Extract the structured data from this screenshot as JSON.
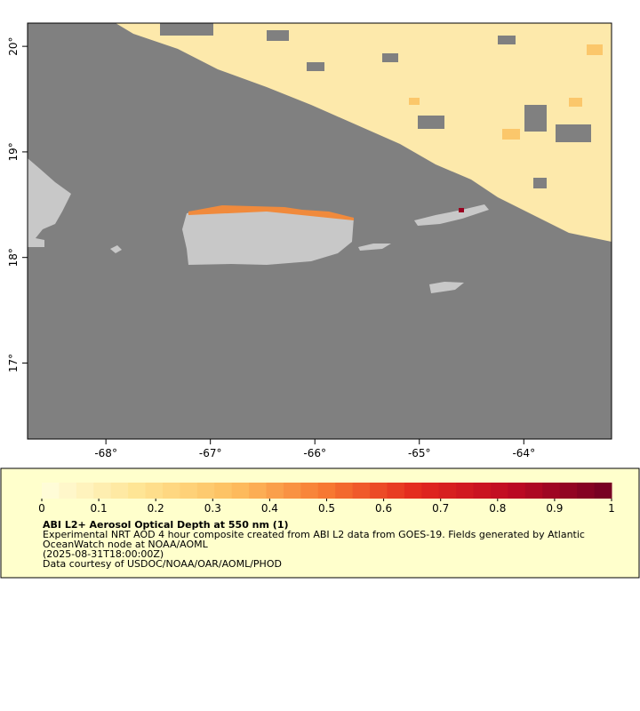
{
  "map": {
    "xlim": [
      -68.75,
      -63.16
    ],
    "ylim": [
      16.28,
      20.22
    ],
    "xticks": [
      {
        "value": -68,
        "label": "-68°"
      },
      {
        "value": -67,
        "label": "-67°"
      },
      {
        "value": -66,
        "label": "-66°"
      },
      {
        "value": -65,
        "label": "-65°"
      },
      {
        "value": -64,
        "label": "-64°"
      }
    ],
    "yticks": [
      {
        "value": 17,
        "label": "17°"
      },
      {
        "value": 18,
        "label": "18°"
      },
      {
        "value": 19,
        "label": "19°"
      },
      {
        "value": 20,
        "label": "20°"
      }
    ]
  },
  "colorbar": {
    "lim": [
      0,
      1
    ],
    "ticks": [
      0,
      0.1,
      0.2,
      0.3,
      0.4,
      0.5,
      0.6,
      0.7,
      0.8,
      0.9,
      1
    ]
  },
  "legend": {
    "title": "ABI L2+ Aerosol Optical Depth at 550 nm (1)",
    "lines": [
      "Experimental NRT AOD 4 hour composite created from ABI L2 data from GOES-19. Fields generated by Atlantic",
      "OceanWatch node at NOAA/AOML",
      "(2025-08-31T18:00:00Z)",
      "Data courtesy of USDOC/NOAA/OAR/AOML/PHOD"
    ]
  }
}
